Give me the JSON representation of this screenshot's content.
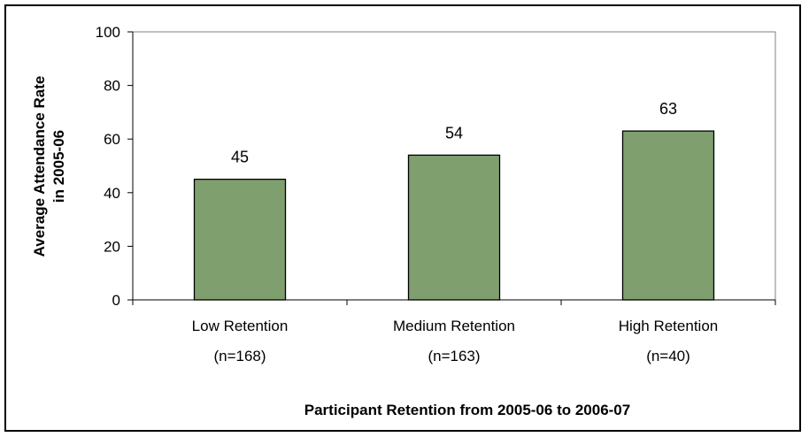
{
  "chart_data": {
    "type": "bar",
    "categories": [
      {
        "line1": "Low  Retention",
        "line2": "(n=168)"
      },
      {
        "line1": "Medium Retention",
        "line2": "(n=163)"
      },
      {
        "line1": "High Retention",
        "line2": "(n=40)"
      }
    ],
    "values": [
      45,
      54,
      63
    ],
    "data_labels": [
      "45",
      "54",
      "63"
    ],
    "ylabel_line1": "Average Attendance Rate",
    "ylabel_line2": "in 2005-06",
    "xlabel": "Participant Retention from 2005-06 to 2006-07",
    "ylim": [
      0,
      100
    ],
    "yticks": [
      "0",
      "20",
      "40",
      "60",
      "80",
      "100"
    ],
    "grid": false,
    "legend": "none",
    "bar_color": "#7f9f6f",
    "bar_edge_color": "#000000"
  }
}
